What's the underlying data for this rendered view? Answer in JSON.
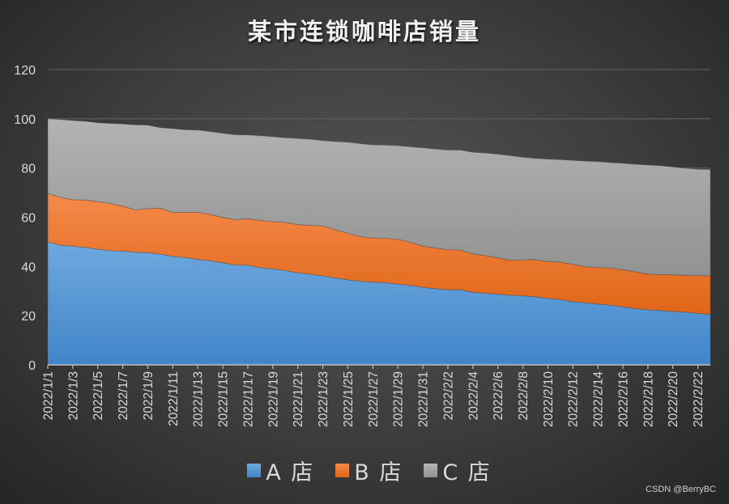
{
  "chart_data": {
    "type": "area",
    "stacked": true,
    "title": "某市连锁咖啡店销量",
    "xlabel": "",
    "ylabel": "",
    "ylim": [
      0,
      120
    ],
    "yticks": [
      0,
      20,
      40,
      60,
      80,
      100,
      120
    ],
    "grid": true,
    "legend_position": "bottom",
    "x": [
      "2022/1/1",
      "2022/1/2",
      "2022/1/3",
      "2022/1/4",
      "2022/1/5",
      "2022/1/6",
      "2022/1/7",
      "2022/1/8",
      "2022/1/9",
      "2022/1/10",
      "2022/1/11",
      "2022/1/12",
      "2022/1/13",
      "2022/1/14",
      "2022/1/15",
      "2022/1/16",
      "2022/1/17",
      "2022/1/18",
      "2022/1/19",
      "2022/1/20",
      "2022/1/21",
      "2022/1/22",
      "2022/1/23",
      "2022/1/24",
      "2022/1/25",
      "2022/1/26",
      "2022/1/27",
      "2022/1/28",
      "2022/1/29",
      "2022/1/30",
      "2022/1/31",
      "2022/2/1",
      "2022/2/2",
      "2022/2/3",
      "2022/2/4",
      "2022/2/5",
      "2022/2/6",
      "2022/2/7",
      "2022/2/8",
      "2022/2/9",
      "2022/2/10",
      "2022/2/11",
      "2022/2/12",
      "2022/2/13",
      "2022/2/14",
      "2022/2/15",
      "2022/2/16",
      "2022/2/17",
      "2022/2/18",
      "2022/2/19",
      "2022/2/20",
      "2022/2/21",
      "2022/2/22",
      "2022/2/23"
    ],
    "xtick_labels": [
      "2022/1/1",
      "2022/1/3",
      "2022/1/5",
      "2022/1/7",
      "2022/1/9",
      "2022/1/11",
      "2022/1/13",
      "2022/1/15",
      "2022/1/17",
      "2022/1/19",
      "2022/1/21",
      "2022/1/23",
      "2022/1/25",
      "2022/1/27",
      "2022/1/29",
      "2022/1/31",
      "2022/2/2",
      "2022/2/4",
      "2022/2/6",
      "2022/2/8",
      "2022/2/10",
      "2022/2/12",
      "2022/2/14",
      "2022/2/16",
      "2022/2/18",
      "2022/2/20",
      "2022/2/22"
    ],
    "series": [
      {
        "name": "A 店",
        "color": "#5b9bd5",
        "values": [
          50,
          48.6,
          48.2,
          47.7,
          47,
          46.4,
          46.3,
          45.8,
          45.6,
          45,
          44.1,
          43.6,
          42.8,
          42.3,
          41.5,
          40.6,
          40.5,
          39.5,
          39,
          38.3,
          37.4,
          36.8,
          36.2,
          35.3,
          34.6,
          34,
          33.6,
          33.4,
          32.8,
          32.3,
          31.5,
          31,
          30.5,
          30.5,
          29.5,
          29.1,
          28.7,
          28.3,
          28,
          27.7,
          27,
          26.5,
          25.7,
          25.2,
          24.7,
          24.3,
          23.6,
          22.8,
          22.4,
          22.1,
          21.7,
          21.4,
          20.9,
          20.5
        ]
      },
      {
        "name": "B 店",
        "color": "#ed7d31",
        "values": [
          19.7,
          19.5,
          18.9,
          19.3,
          19.3,
          19.2,
          18.2,
          17.2,
          17.9,
          18.7,
          17.8,
          18.4,
          19.2,
          18.9,
          18.4,
          18.4,
          18.9,
          19.2,
          19.2,
          19.6,
          19.6,
          19.9,
          20.3,
          19.6,
          18.9,
          18.1,
          18,
          18.1,
          18.2,
          17.6,
          16.8,
          16.5,
          16.3,
          16.2,
          15.6,
          15.3,
          14.8,
          14.2,
          14.7,
          15.1,
          15,
          15.3,
          15.2,
          14.7,
          14.9,
          15.1,
          15.1,
          15,
          14.5,
          14.6,
          14.9,
          15,
          15.4,
          15.7
        ]
      },
      {
        "name": "C 店",
        "color": "#a5a5a5",
        "values": [
          30.3,
          31.6,
          32.2,
          32,
          32.1,
          32.5,
          33.4,
          34.5,
          33.9,
          32.7,
          34.1,
          33.5,
          33.4,
          33.6,
          34.2,
          34.5,
          34,
          34.4,
          34.5,
          34.4,
          35,
          35,
          34.6,
          35.8,
          37,
          37.8,
          37.8,
          37.8,
          38.1,
          38.7,
          39.9,
          40.2,
          40.5,
          40.6,
          41.3,
          41.7,
          42.1,
          42.5,
          41.7,
          41.1,
          41.6,
          41.6,
          42.2,
          42.9,
          43,
          42.8,
          43.2,
          43.7,
          44.3,
          44.2,
          43.8,
          43.5,
          43.2,
          43.2
        ]
      }
    ]
  },
  "legend": {
    "items": [
      {
        "label": "A 店",
        "color": "#5b9bd5"
      },
      {
        "label": "B 店",
        "color": "#ed7d31"
      },
      {
        "label": "C 店",
        "color": "#a5a5a5"
      }
    ]
  },
  "watermark": "CSDN @BerryBC"
}
